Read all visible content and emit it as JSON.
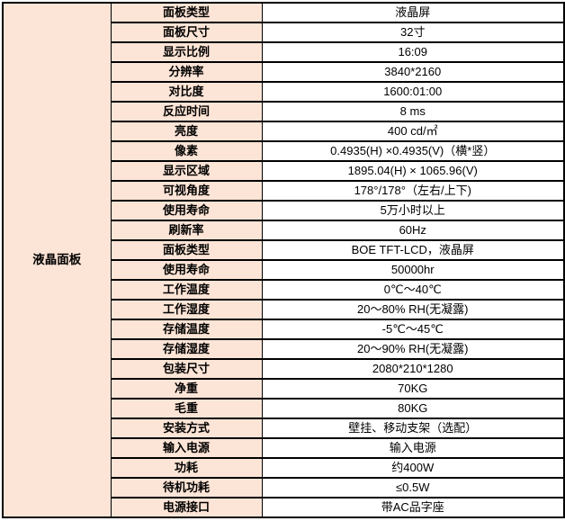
{
  "colors": {
    "header_bg": "#fce4d6",
    "value_bg": "#ffffff",
    "border": "#000000",
    "text": "#000000"
  },
  "table": {
    "group_label": "液晶面板",
    "rows": [
      {
        "label": "面板类型",
        "value": "液晶屏"
      },
      {
        "label": "面板尺寸",
        "value": "32寸"
      },
      {
        "label": "显示比例",
        "value": "16:09"
      },
      {
        "label": "分辨率",
        "value": "3840*2160"
      },
      {
        "label": "对比度",
        "value": "1600:01:00"
      },
      {
        "label": "反应时间",
        "value": "8 ms"
      },
      {
        "label": "亮度",
        "value": "400 cd/㎡"
      },
      {
        "label": "像素",
        "value": "0.4935(H) ×0.4935(V)（横*竖）"
      },
      {
        "label": "显示区域",
        "value": "1895.04(H) × 1065.96(V)"
      },
      {
        "label": "可视角度",
        "value": "178°/178°（左右/上下)"
      },
      {
        "label": "使用寿命",
        "value": "5万小时以上"
      },
      {
        "label": "刷新率",
        "value": "60Hz"
      },
      {
        "label": "面板类型",
        "value": "BOE TFT-LCD，液晶屏"
      },
      {
        "label": "使用寿命",
        "value": "50000hr"
      },
      {
        "label": "工作温度",
        "value": "0℃～40℃"
      },
      {
        "label": "工作湿度",
        "value": "20～80% RH(无凝露)"
      },
      {
        "label": "存储温度",
        "value": "-5℃～45℃"
      },
      {
        "label": "存储湿度",
        "value": "20～90% RH(无凝露)"
      },
      {
        "label": "包装尺寸",
        "value": "2080*210*1280"
      },
      {
        "label": "净重",
        "value": "70KG"
      },
      {
        "label": "毛重",
        "value": "80KG"
      },
      {
        "label": "安装方式",
        "value": "壁挂、移动支架（选配）"
      },
      {
        "label": "输入电源",
        "value": "输入电源"
      },
      {
        "label": "功耗",
        "value": "约400W"
      },
      {
        "label": "待机功耗",
        "value": "≤0.5W"
      },
      {
        "label": "电源接口",
        "value": "带AC品字座"
      }
    ]
  }
}
